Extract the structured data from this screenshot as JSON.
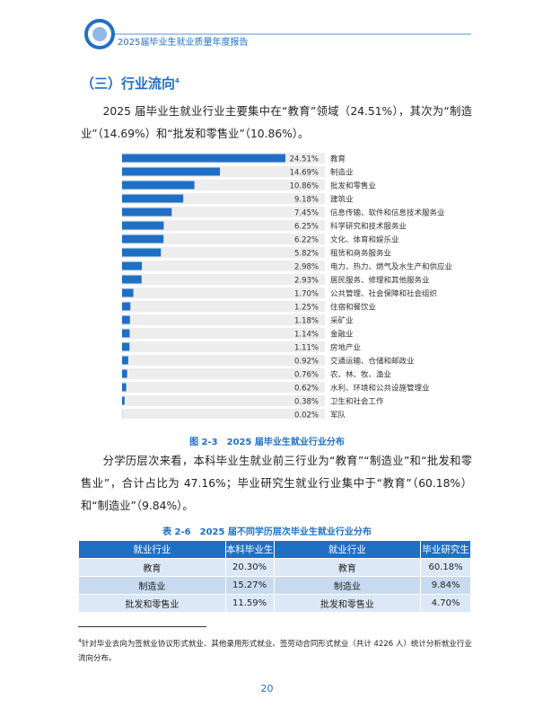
{
  "header": {
    "title": "2025届毕业生就业质量年度报告"
  },
  "section": {
    "heading": "（三）行业流向",
    "footnote_ref": "4"
  },
  "paragraphs": [
    "2025 届毕业生就业行业主要集中在“教育”领域（24.51%），其次为“制造业”（14.69%）和“批发和零售业”（10.86%）。",
    "分学历层次来看，本科毕业生就业前三行业为“教育”“制造业”和“批发和零售业”，合计占比为 47.16%；毕业研究生就业行业集中于“教育”（60.18%）和“制造业”（9.84%）。"
  ],
  "chart_data": {
    "type": "bar",
    "orientation": "horizontal",
    "title": "图 2-3　2025 届毕业生就业行业分布",
    "color": "#1f6fc5",
    "categories": [
      "教育",
      "制造业",
      "批发和零售业",
      "建筑业",
      "信息传输、软件和信息技术服务业",
      "科学研究和技术服务业",
      "文化、体育和娱乐业",
      "租赁和商务服务业",
      "电力、热力、燃气及水生产和供应业",
      "居民服务、修理和其他服务业",
      "公共管理、社会保障和社会组织",
      "住宿和餐饮业",
      "采矿业",
      "金融业",
      "房地产业",
      "交通运输、仓储和邮政业",
      "农、林、牧、渔业",
      "水利、环境和公共设施管理业",
      "卫生和社会工作",
      "军队"
    ],
    "values": [
      24.51,
      14.69,
      10.86,
      9.18,
      7.45,
      6.25,
      6.22,
      5.82,
      2.98,
      2.93,
      1.7,
      1.25,
      1.18,
      1.14,
      1.11,
      0.92,
      0.76,
      0.62,
      0.38,
      0.02
    ],
    "value_labels": [
      "24.51%",
      "14.69%",
      "10.86%",
      "9.18%",
      "7.45%",
      "6.25%",
      "6.22%",
      "5.82%",
      "2.98%",
      "2.93%",
      "1.70%",
      "1.25%",
      "1.18%",
      "1.14%",
      "1.11%",
      "0.92%",
      "0.76%",
      "0.62%",
      "0.38%",
      "0.02%"
    ]
  },
  "table": {
    "caption": "表 2-6　2025 届不同学历层次毕业生就业行业分布",
    "headers": [
      "就业行业",
      "本科毕业生",
      "就业行业",
      "毕业研究生"
    ],
    "rows": [
      [
        "教育",
        "20.30%",
        "教育",
        "60.18%"
      ],
      [
        "制造业",
        "15.27%",
        "制造业",
        "9.84%"
      ],
      [
        "批发和零售业",
        "11.59%",
        "批发和零售业",
        "4.70%"
      ]
    ]
  },
  "footnote": {
    "ref": "4",
    "text": "针对毕业去向为签就业协议形式就业、其他录用形式就业、签劳动合同形式就业（共计 4226 人）统计分析就业行业流向分布。"
  },
  "page_number": "20"
}
